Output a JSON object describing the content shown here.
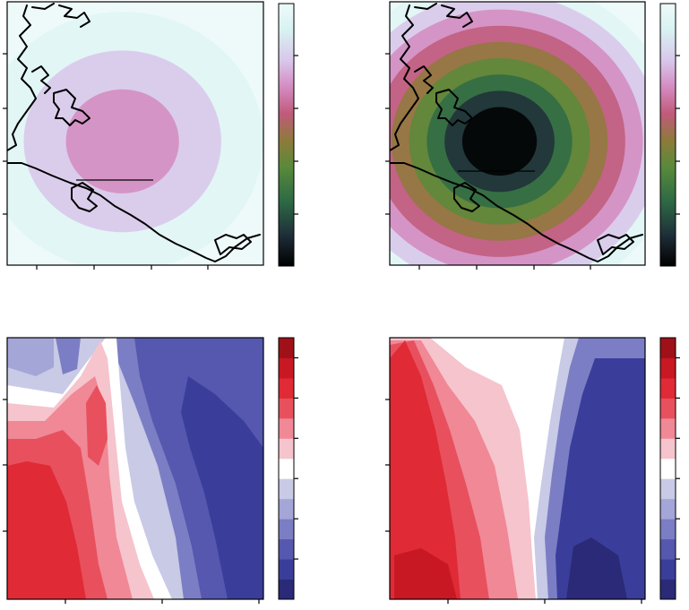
{
  "chart_data": [
    {
      "type": "heatmap",
      "title": "",
      "xlabel": "",
      "ylabel": "",
      "colormap": [
        "#000000",
        "#1f2f3a",
        "#2e6b45",
        "#5a8a3a",
        "#8e7a3a",
        "#c05a7a",
        "#d48ac0",
        "#d8c6ea",
        "#d8f2f2",
        "#eefafa"
      ],
      "field": {
        "cx": 0.45,
        "cy": 0.53,
        "peak": 0.32,
        "radius": 0.16,
        "halo": 0.55
      },
      "transect": {
        "x0": 0.27,
        "x1": 0.57,
        "y": 0.53
      },
      "grid": false,
      "legend": "colorbar-right"
    },
    {
      "type": "heatmap",
      "title": "",
      "xlabel": "",
      "ylabel": "",
      "colormap": [
        "#000000",
        "#1f2f3a",
        "#2e6b45",
        "#5a8a3a",
        "#8e7a3a",
        "#c05a7a",
        "#d48ac0",
        "#d8c6ea",
        "#d8f2f2",
        "#eefafa"
      ],
      "field": {
        "cx": 0.43,
        "cy": 0.53,
        "peak": 0.95,
        "radius": 0.22,
        "halo": 0.7
      },
      "transect": {
        "x0": 0.27,
        "x1": 0.57,
        "y": 0.53
      },
      "grid": false,
      "legend": "colorbar-right"
    },
    {
      "type": "heatmap",
      "title": "",
      "xlabel": "",
      "ylabel": "",
      "colormap": [
        "#2a2a78",
        "#3a3e9a",
        "#5558ae",
        "#7b7ec4",
        "#a3a6d6",
        "#c8cae6",
        "#ffffff",
        "#f6c4cc",
        "#f08896",
        "#e8505e",
        "#e02a36",
        "#c81824",
        "#a01018"
      ],
      "grid": false,
      "legend": "colorbar-right"
    },
    {
      "type": "heatmap",
      "title": "",
      "xlabel": "",
      "ylabel": "",
      "colormap": [
        "#2a2a78",
        "#3a3e9a",
        "#5558ae",
        "#7b7ec4",
        "#a3a6d6",
        "#c8cae6",
        "#ffffff",
        "#f6c4cc",
        "#f08896",
        "#e8505e",
        "#e02a36",
        "#c81824",
        "#a01018"
      ],
      "grid": false,
      "legend": "colorbar-right"
    }
  ]
}
